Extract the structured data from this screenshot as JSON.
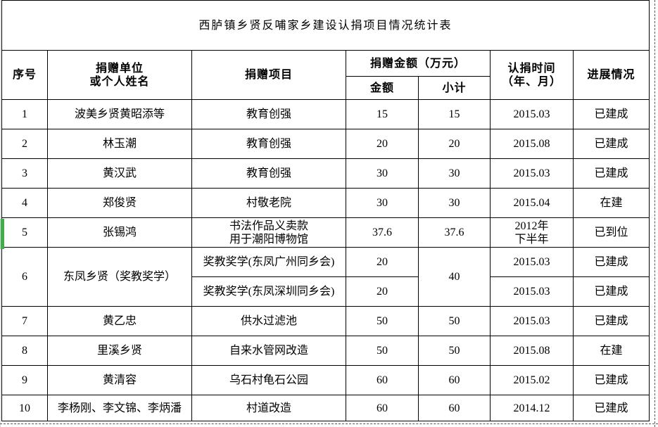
{
  "title": "西胪镇乡贤反哺家乡建设认捐项目情况统计表",
  "colors": {
    "indicator_green": "#3eae49",
    "page_break": "#595959",
    "table_border": "#000000"
  },
  "table": {
    "headers": {
      "seq": "序号",
      "donor": "捐赠单位\n或个人姓名",
      "project": "捐赠项目",
      "amount_group": "捐赠金额（万元）",
      "amount": "金额",
      "subtotal": "小计",
      "time": "认捐时间\n（年、月）",
      "progress": "进展情况"
    },
    "rows": [
      {
        "seq": "1",
        "donor": "波美乡贤黄昭添等",
        "project": "教育创强",
        "amount": "15",
        "subtotal": "15",
        "time": "2015.03",
        "progress": "已建成"
      },
      {
        "seq": "2",
        "donor": "林玉潮",
        "project": "教育创强",
        "amount": "20",
        "subtotal": "20",
        "time": "2015.08",
        "progress": "已建成"
      },
      {
        "seq": "3",
        "donor": "黄汉武",
        "project": "教育创强",
        "amount": "30",
        "subtotal": "30",
        "time": "2015.03",
        "progress": "已建成"
      },
      {
        "seq": "4",
        "donor": "郑俊贤",
        "project": "村敬老院",
        "amount": "30",
        "subtotal": "30",
        "time": "2015.04",
        "progress": "在建"
      },
      {
        "seq": "5",
        "donor": "张锡鸿",
        "project": "书法作品义卖款\n用于潮阳博物馆",
        "amount": "37.6",
        "subtotal": "37.6",
        "time": "2012年\n下半年",
        "progress": "已到位"
      },
      {
        "seq": "6",
        "donor": "东凤乡贤（奖教奖学）",
        "subtotal": "40",
        "subrows": [
          {
            "project": "奖教奖学(东凤广州同乡会)",
            "amount": "20",
            "time": "2015.03",
            "progress": "已建成"
          },
          {
            "project": "奖教奖学(东凤深圳同乡会)",
            "amount": "20",
            "time": "2015.03",
            "progress": "已建成"
          }
        ]
      },
      {
        "seq": "7",
        "donor": "黄乙忠",
        "project": "供水过滤池",
        "amount": "50",
        "subtotal": "50",
        "time": "2015.03",
        "progress": "已建成"
      },
      {
        "seq": "8",
        "donor": "里溪乡贤",
        "project": "自来水管网改造",
        "amount": "50",
        "subtotal": "50",
        "time": "2015.08",
        "progress": "在建"
      },
      {
        "seq": "9",
        "donor": "黄清容",
        "project": "乌石村龟石公园",
        "amount": "60",
        "subtotal": "60",
        "time": "2015.02",
        "progress": "已建成"
      },
      {
        "seq": "10",
        "donor": "李杨刚、李文锦、李炳潘",
        "project": "村道改造",
        "amount": "60",
        "subtotal": "60",
        "time": "2014.12",
        "progress": "已建成"
      }
    ]
  }
}
